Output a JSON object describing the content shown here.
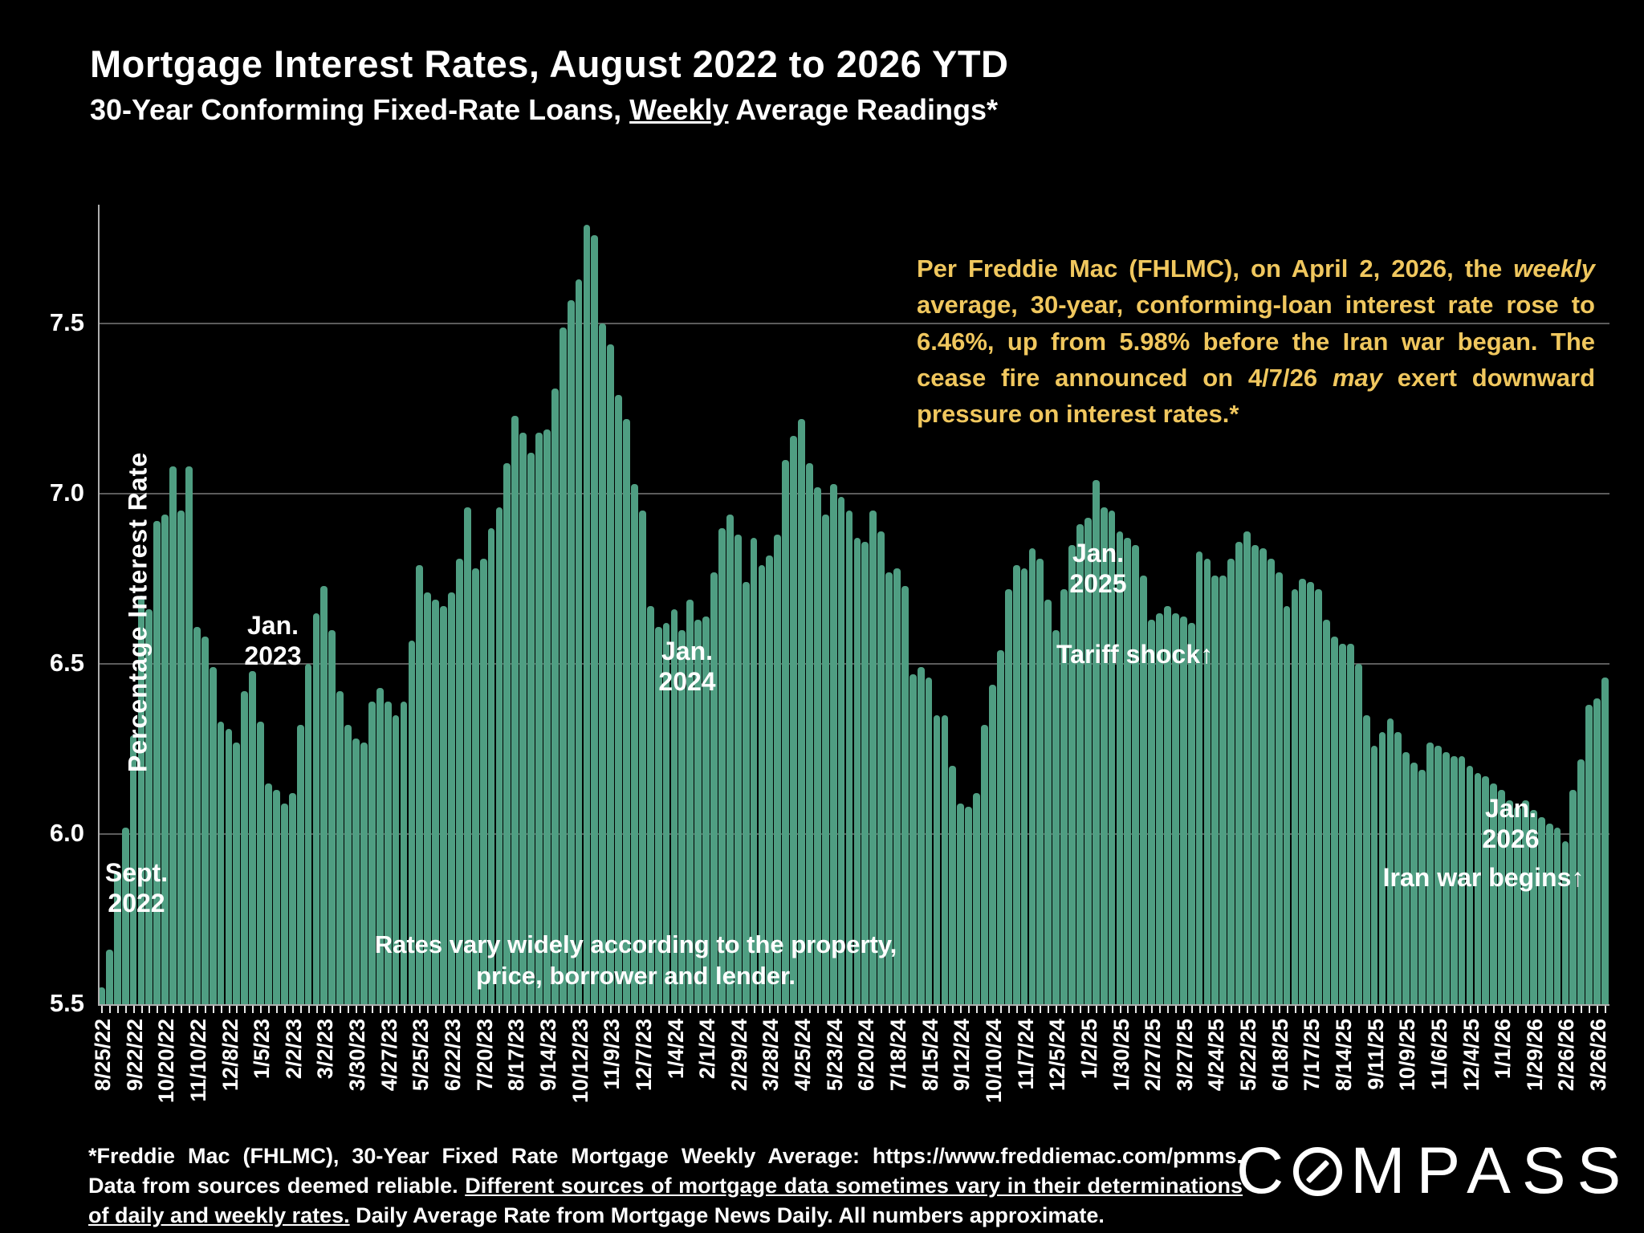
{
  "title": "Mortgage Interest Rates, August 2022 to 2026 YTD",
  "subtitle_segments": [
    {
      "t": "30-Year Conforming Fixed-Rate Loans, "
    },
    {
      "t": "Weekly",
      "u": 1
    },
    {
      "t": " Average Readings*"
    }
  ],
  "chart_data": {
    "type": "bar",
    "title": "Mortgage Interest Rates, August 2022 to 2026 YTD",
    "ylabel": "Percentage Interest  Rate",
    "ylim": [
      5.5,
      7.85
    ],
    "ytick_labels": [
      "7.5",
      "7.0",
      "6.5",
      "6.0",
      "5.5"
    ],
    "yticks": [
      7.5,
      7.0,
      6.5,
      6.0,
      5.5
    ],
    "grid": "horizontal",
    "bar_color": "#4f9e82",
    "x_tick_every": 4,
    "x_tick_labels": [
      "8/25/22",
      "9/22/22",
      "10/20/22",
      "11/10/22",
      "12/8/22",
      "1/5/23",
      "2/2/23",
      "3/2/23",
      "3/30/23",
      "4/27/23",
      "5/25/23",
      "6/22/23",
      "7/20/23",
      "8/17/23",
      "9/14/23",
      "10/12/23",
      "11/9/23",
      "12/7/23",
      "1/4/24",
      "2/1/24",
      "2/29/24",
      "3/28/24",
      "4/25/24",
      "5/23/24",
      "6/20/24",
      "7/18/24",
      "8/15/24",
      "9/12/24",
      "10/10/24",
      "11/7/24",
      "12/5/24",
      "1/2/25",
      "1/30/25",
      "2/27/25",
      "3/27/25",
      "4/24/25",
      "5/22/25",
      "6/18/25",
      "7/17/25",
      "8/14/25",
      "9/11/25",
      "10/9/25",
      "11/6/25",
      "12/4/25",
      "1/1/26",
      "1/29/26",
      "2/26/26",
      "3/26/26"
    ],
    "values": [
      5.55,
      5.66,
      5.89,
      6.02,
      6.29,
      6.7,
      6.66,
      6.92,
      6.94,
      7.08,
      6.95,
      7.08,
      6.61,
      6.58,
      6.49,
      6.33,
      6.31,
      6.27,
      6.42,
      6.48,
      6.33,
      6.15,
      6.13,
      6.09,
      6.12,
      6.32,
      6.5,
      6.65,
      6.73,
      6.6,
      6.42,
      6.32,
      6.28,
      6.27,
      6.39,
      6.43,
      6.39,
      6.35,
      6.39,
      6.57,
      6.79,
      6.71,
      6.69,
      6.67,
      6.71,
      6.81,
      6.96,
      6.78,
      6.81,
      6.9,
      6.96,
      7.09,
      7.23,
      7.18,
      7.12,
      7.18,
      7.19,
      7.31,
      7.49,
      7.57,
      7.63,
      7.79,
      7.76,
      7.5,
      7.44,
      7.29,
      7.22,
      7.03,
      6.95,
      6.67,
      6.61,
      6.62,
      6.66,
      6.6,
      6.69,
      6.63,
      6.64,
      6.77,
      6.9,
      6.94,
      6.88,
      6.74,
      6.87,
      6.79,
      6.82,
      6.88,
      7.1,
      7.17,
      7.22,
      7.09,
      7.02,
      6.94,
      7.03,
      6.99,
      6.95,
      6.87,
      6.86,
      6.95,
      6.89,
      6.77,
      6.78,
      6.73,
      6.47,
      6.49,
      6.46,
      6.35,
      6.35,
      6.2,
      6.09,
      6.08,
      6.12,
      6.32,
      6.44,
      6.54,
      6.72,
      6.79,
      6.78,
      6.84,
      6.81,
      6.69,
      6.6,
      6.72,
      6.85,
      6.91,
      6.93,
      7.04,
      6.96,
      6.95,
      6.89,
      6.87,
      6.85,
      6.76,
      6.63,
      6.65,
      6.67,
      6.65,
      6.64,
      6.62,
      6.83,
      6.81,
      6.76,
      6.76,
      6.81,
      6.86,
      6.89,
      6.85,
      6.84,
      6.81,
      6.77,
      6.67,
      6.72,
      6.75,
      6.74,
      6.72,
      6.63,
      6.58,
      6.56,
      6.56,
      6.5,
      6.35,
      6.26,
      6.3,
      6.34,
      6.3,
      6.24,
      6.21,
      6.19,
      6.27,
      6.26,
      6.24,
      6.23,
      6.23,
      6.2,
      6.18,
      6.17,
      6.15,
      6.13,
      6.1,
      6.08,
      6.1,
      6.07,
      6.05,
      6.03,
      6.02,
      5.98,
      6.13,
      6.22,
      6.38,
      6.4,
      6.46
    ],
    "annotations": {
      "sept_2022": "Sept.\n2022",
      "jan_2023": "Jan.\n2023",
      "jan_2024": "Jan.\n2024",
      "jan_2025": "Jan.\n2025",
      "tariff_shock": "Tariff shock↑",
      "jan_2026": "Jan.\n2026",
      "iran_war": "Iran war begins↑",
      "in_chart_note": "Rates vary widely according to the property, price, borrower and lender."
    }
  },
  "note_box_segments": [
    {
      "t": "Per Freddie Mac (FHLMC), on April 2, 2026, the "
    },
    {
      "t": "weekly",
      "i": 1
    },
    {
      "t": " average, 30-year, conforming-loan interest rate rose to 6.46%, up from 5.98% before the Iran war began. The cease fire announced on 4/7/26 "
    },
    {
      "t": "may",
      "i": 1
    },
    {
      "t": " exert downward pressure on interest rates.*"
    }
  ],
  "footer_lines": [
    [
      {
        "t": "*Freddie Mac (FHLMC), 30-Year Fixed Rate Mortgage Weekly Average:  https://www.freddiemac.com/pmms."
      }
    ],
    [
      {
        "t": "Data from sources deemed reliable. "
      },
      {
        "t": "Different sources of mortgage data sometimes vary in their determinations",
        "u": 1
      }
    ],
    [
      {
        "t": "of daily and weekly rates.",
        "u": 1
      },
      {
        "t": " Daily Average Rate from Mortgage News Daily. All numbers approximate."
      }
    ]
  ],
  "logo": {
    "pre": "C",
    "post": "MPASS",
    "name": "COMPASS"
  }
}
